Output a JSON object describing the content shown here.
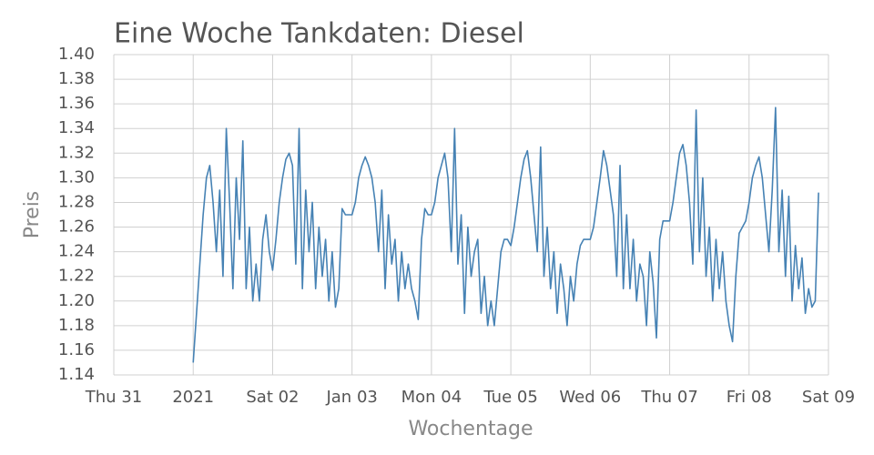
{
  "chart_data": {
    "type": "line",
    "title": "Eine Woche Tankdaten: Diesel",
    "x_label": "Wochentage",
    "y_label": "Preis",
    "color": "#4682b4",
    "grid": true,
    "xlim": [
      0,
      216
    ],
    "xticks": [
      {
        "value": 0,
        "label": "Thu 31"
      },
      {
        "value": 24,
        "label": "2021"
      },
      {
        "value": 48,
        "label": "Sat 02"
      },
      {
        "value": 72,
        "label": "Jan 03"
      },
      {
        "value": 96,
        "label": "Mon 04"
      },
      {
        "value": 120,
        "label": "Tue 05"
      },
      {
        "value": 144,
        "label": "Wed 06"
      },
      {
        "value": 168,
        "label": "Thu 07"
      },
      {
        "value": 192,
        "label": "Fri 08"
      },
      {
        "value": 216,
        "label": "Sat 09"
      }
    ],
    "ylim": [
      1.14,
      1.4
    ],
    "yticks": [
      1.14,
      1.16,
      1.18,
      {
        "value": 1.2,
        "label": "1.20"
      },
      1.22,
      1.24,
      1.26,
      1.28,
      {
        "value": 1.3,
        "label": "1.30"
      },
      1.32,
      1.34,
      1.36,
      1.38,
      {
        "value": 1.4,
        "label": "1.40"
      }
    ],
    "x": [
      24,
      25,
      26,
      27,
      28,
      29,
      30,
      31,
      32,
      33,
      34,
      35,
      36,
      37,
      38,
      39,
      40,
      41,
      42,
      43,
      44,
      45,
      46,
      47,
      48,
      49,
      50,
      51,
      52,
      53,
      54,
      55,
      56,
      57,
      58,
      59,
      60,
      61,
      62,
      63,
      64,
      65,
      66,
      67,
      68,
      69,
      70,
      71,
      72,
      73,
      74,
      75,
      76,
      77,
      78,
      79,
      80,
      81,
      82,
      83,
      84,
      85,
      86,
      87,
      88,
      89,
      90,
      91,
      92,
      93,
      94,
      95,
      96,
      97,
      98,
      99,
      100,
      101,
      102,
      103,
      104,
      105,
      106,
      107,
      108,
      109,
      110,
      111,
      112,
      113,
      114,
      115,
      116,
      117,
      118,
      119,
      120,
      121,
      122,
      123,
      124,
      125,
      126,
      127,
      128,
      129,
      130,
      131,
      132,
      133,
      134,
      135,
      136,
      137,
      138,
      139,
      140,
      141,
      142,
      143,
      144,
      145,
      146,
      147,
      148,
      149,
      150,
      151,
      152,
      153,
      154,
      155,
      156,
      157,
      158,
      159,
      160,
      161,
      162,
      163,
      164,
      165,
      166,
      167,
      168,
      169,
      170,
      171,
      172,
      173,
      174,
      175,
      176,
      177,
      178,
      179,
      180,
      181,
      182,
      183,
      184,
      185,
      186,
      187,
      188,
      189,
      190,
      191,
      192,
      193,
      194,
      195,
      196,
      197,
      198,
      199,
      200,
      201,
      202,
      203,
      204,
      205,
      206,
      207,
      208,
      209,
      210,
      211,
      212,
      213
    ],
    "values": [
      1.15,
      1.19,
      1.23,
      1.27,
      1.3,
      1.31,
      1.28,
      1.24,
      1.29,
      1.22,
      1.34,
      1.28,
      1.21,
      1.3,
      1.25,
      1.33,
      1.21,
      1.26,
      1.2,
      1.23,
      1.2,
      1.25,
      1.27,
      1.24,
      1.225,
      1.25,
      1.28,
      1.3,
      1.315,
      1.32,
      1.31,
      1.23,
      1.34,
      1.21,
      1.29,
      1.24,
      1.28,
      1.21,
      1.26,
      1.22,
      1.25,
      1.2,
      1.24,
      1.195,
      1.21,
      1.275,
      1.27,
      1.27,
      1.27,
      1.28,
      1.3,
      1.31,
      1.317,
      1.31,
      1.3,
      1.28,
      1.24,
      1.29,
      1.21,
      1.27,
      1.23,
      1.25,
      1.2,
      1.24,
      1.21,
      1.23,
      1.21,
      1.2,
      1.185,
      1.25,
      1.275,
      1.27,
      1.27,
      1.28,
      1.3,
      1.31,
      1.32,
      1.3,
      1.24,
      1.34,
      1.23,
      1.27,
      1.19,
      1.26,
      1.22,
      1.24,
      1.25,
      1.19,
      1.22,
      1.18,
      1.2,
      1.18,
      1.21,
      1.24,
      1.25,
      1.25,
      1.245,
      1.26,
      1.28,
      1.3,
      1.315,
      1.322,
      1.3,
      1.27,
      1.24,
      1.325,
      1.22,
      1.26,
      1.21,
      1.24,
      1.19,
      1.23,
      1.21,
      1.18,
      1.22,
      1.2,
      1.23,
      1.245,
      1.25,
      1.25,
      1.25,
      1.26,
      1.28,
      1.3,
      1.322,
      1.31,
      1.29,
      1.27,
      1.22,
      1.31,
      1.21,
      1.27,
      1.21,
      1.25,
      1.2,
      1.23,
      1.22,
      1.18,
      1.24,
      1.215,
      1.17,
      1.25,
      1.265,
      1.265,
      1.265,
      1.28,
      1.3,
      1.32,
      1.327,
      1.31,
      1.28,
      1.23,
      1.355,
      1.24,
      1.3,
      1.22,
      1.26,
      1.2,
      1.25,
      1.21,
      1.24,
      1.2,
      1.18,
      1.167,
      1.22,
      1.255,
      1.26,
      1.265,
      1.28,
      1.3,
      1.31,
      1.317,
      1.3,
      1.27,
      1.24,
      1.29,
      1.357,
      1.24,
      1.29,
      1.22,
      1.285,
      1.2,
      1.245,
      1.21,
      1.235,
      1.19,
      1.21,
      1.195,
      1.2,
      1.288
    ]
  }
}
